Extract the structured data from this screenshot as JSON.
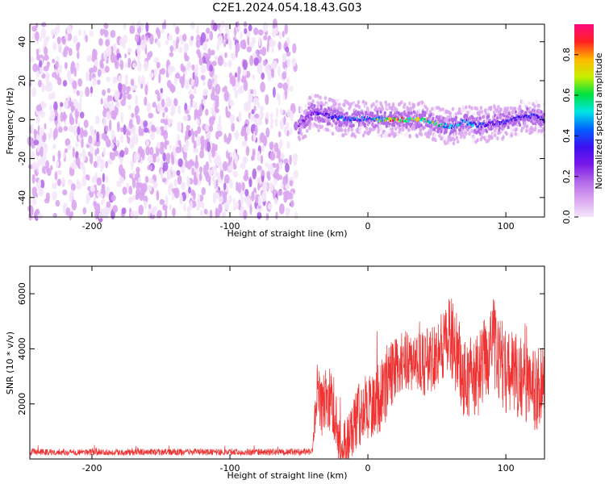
{
  "title": "C2E1.2024.054.18.43.G03",
  "chart_data": [
    {
      "type": "heatmap",
      "xlabel": "Height of straight line (km)",
      "ylabel": "Frequency (Hz)",
      "xlim": [
        -245,
        128
      ],
      "ylim": [
        -50,
        49
      ],
      "xticks": [
        -200,
        -100,
        0,
        100
      ],
      "yticks": [
        -40,
        -20,
        0,
        20,
        40
      ],
      "colorbar": {
        "label": "Normalized spectral amplitude",
        "range": [
          0.0,
          0.95
        ],
        "ticks": [
          0.0,
          0.2,
          0.4,
          0.6,
          0.8
        ]
      },
      "colormap": [
        "#f4e6fa",
        "#d9a6f0",
        "#b36ae8",
        "#7a18e8",
        "#3d10f0",
        "#0060ff",
        "#00e5e5",
        "#00e040",
        "#c8f000",
        "#ffb800",
        "#ff2020",
        "#ff0a80"
      ],
      "noise_region_x": [
        -245,
        -52
      ],
      "signal_track": {
        "x": [
          -50,
          -40,
          -30,
          -20,
          -10,
          0,
          10,
          20,
          30,
          40,
          50,
          60,
          70,
          80,
          90,
          100,
          110,
          120,
          128
        ],
        "frequency": [
          -3,
          4,
          2,
          1,
          0,
          0.5,
          0,
          0,
          0,
          0,
          -2,
          -4,
          -1,
          -3,
          -2,
          -1,
          1,
          2,
          0
        ],
        "peak_amplitude": [
          0.25,
          0.35,
          0.4,
          0.45,
          0.5,
          0.55,
          0.75,
          0.95,
          0.85,
          0.8,
          0.7,
          0.55,
          0.6,
          0.5,
          0.4,
          0.45,
          0.4,
          0.45,
          0.4
        ]
      }
    },
    {
      "type": "line",
      "xlabel": "Height of straight line (km)",
      "ylabel": "SNR (10 * v/v)",
      "xlim": [
        -245,
        128
      ],
      "ylim": [
        0,
        7000
      ],
      "xticks": [
        -200,
        -100,
        0,
        100
      ],
      "yticks": [
        2000,
        4000,
        6000
      ],
      "line_color": "#ee3333",
      "series": [
        {
          "x": [
            -245,
            -200,
            -150,
            -100,
            -60,
            -40,
            -37,
            -34,
            -30,
            -25,
            -20,
            -15,
            -10,
            -5,
            0,
            10,
            20,
            30,
            40,
            50,
            60,
            70,
            80,
            90,
            100,
            110,
            120,
            128
          ],
          "y": [
            250,
            250,
            250,
            250,
            250,
            260,
            2600,
            1800,
            2200,
            2000,
            400,
            600,
            1300,
            1700,
            1900,
            2300,
            3400,
            3600,
            3400,
            3900,
            4500,
            2900,
            3000,
            4300,
            3200,
            3000,
            2400,
            3000
          ],
          "band": [
            200,
            200,
            200,
            200,
            200,
            200,
            1800,
            1800,
            2000,
            2000,
            1500,
            1700,
            1800,
            2000,
            2100,
            2200,
            2000,
            1800,
            2000,
            2200,
            2400,
            2600,
            2600,
            2800,
            2600,
            2600,
            2600,
            2500
          ]
        }
      ]
    }
  ]
}
